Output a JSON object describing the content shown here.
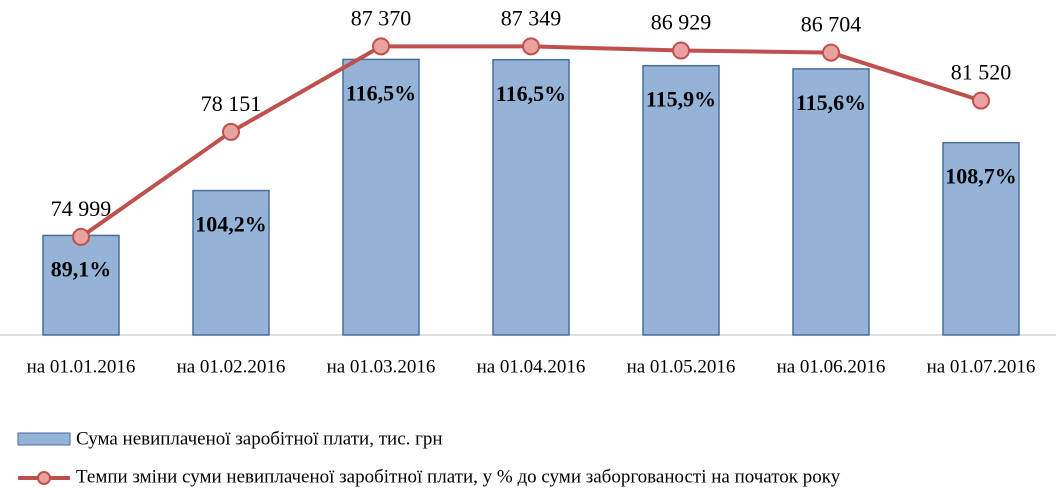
{
  "chart_data": {
    "type": "bar-line",
    "categories": [
      "на 01.01.2016",
      "на 01.02.2016",
      "на 01.03.2016",
      "на 01.04.2016",
      "на 01.05.2016",
      "на 01.06.2016",
      "на 01.07.2016"
    ],
    "ylim": [
      68000,
      90000
    ],
    "y2lim": [
      75,
      120
    ],
    "series": [
      {
        "name": "Сума невиплаченої  заробітної плати, тис. грн",
        "type": "bar",
        "color": "#95b3d7",
        "values": [
          74999,
          78151,
          87370,
          87349,
          86929,
          86704,
          81520
        ],
        "value_labels": [
          "74 999",
          "78 151",
          "87 370",
          "87 349",
          "86 929",
          "86 704",
          "81 520"
        ]
      },
      {
        "name": "Темпи зміни суми невиплаченої заробітної плати, у % до суми заборгованості на початок року",
        "type": "line",
        "axis": "y2",
        "color": "#c0504d",
        "values": [
          89.1,
          104.2,
          116.5,
          116.5,
          115.9,
          115.6,
          108.7
        ],
        "value_labels": [
          "89,1%",
          "104,2%",
          "116,5%",
          "116,5%",
          "115,9%",
          "115,6%",
          "108,7%"
        ]
      }
    ]
  }
}
